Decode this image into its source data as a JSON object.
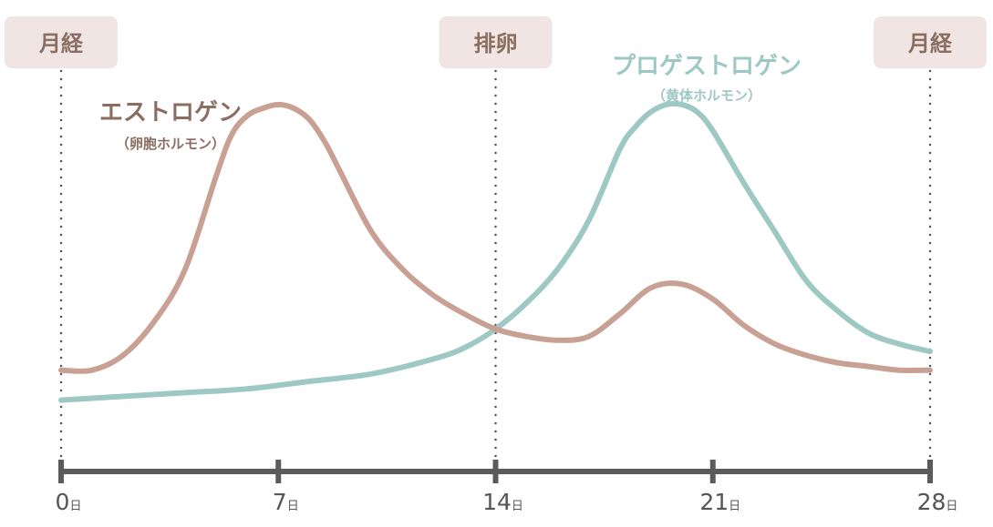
{
  "chart_data": {
    "type": "line",
    "title": "",
    "xlabel": "",
    "ylabel": "",
    "xlim": [
      0,
      28
    ],
    "ylim": [
      0,
      100
    ],
    "grid": false,
    "x_ticks": [
      {
        "value": 0,
        "label": "0",
        "unit": "日"
      },
      {
        "value": 7,
        "label": "7",
        "unit": "日"
      },
      {
        "value": 14,
        "label": "14",
        "unit": "日"
      },
      {
        "value": 21,
        "label": "21",
        "unit": "日"
      },
      {
        "value": 28,
        "label": "28",
        "unit": "日"
      }
    ],
    "phase_markers": [
      {
        "x": 0,
        "label": "月経"
      },
      {
        "x": 14,
        "label": "排卵"
      },
      {
        "x": 28,
        "label": "月経"
      }
    ],
    "series": [
      {
        "name": "エストロゲン",
        "subtitle": "（卵胞ホルモン）",
        "color": "#c9a194",
        "label_color": "#8a6e62",
        "x": [
          0,
          1,
          2,
          3,
          4,
          5,
          5.5,
          6,
          6.5,
          7,
          7.5,
          8,
          8.5,
          9,
          10,
          11,
          12,
          13,
          14,
          15,
          16,
          17,
          18,
          19,
          20,
          21,
          22,
          23,
          24,
          25,
          26,
          27,
          28
        ],
        "y": [
          21,
          21,
          25,
          34,
          48,
          73,
          84,
          89,
          91,
          92,
          91,
          88,
          82,
          74,
          58,
          48,
          41,
          36,
          32,
          30,
          29,
          30,
          36,
          43,
          44,
          40,
          33,
          28,
          25,
          23,
          22,
          21,
          21
        ]
      },
      {
        "name": "プロゲストロゲン",
        "subtitle": "（黄体ホルモン）",
        "color": "#9ec8c3",
        "label_color": "#9ec8c3",
        "x": [
          0,
          2,
          4,
          6,
          8,
          10,
          12,
          13,
          14,
          15,
          16,
          17,
          18,
          18.5,
          19,
          19.5,
          20,
          20.5,
          21,
          22,
          23,
          24,
          25,
          26,
          27,
          28
        ],
        "y": [
          13,
          14,
          15,
          16,
          18,
          20,
          24,
          27,
          32,
          39,
          48,
          61,
          80,
          86,
          90,
          92,
          92,
          90,
          85,
          71,
          58,
          45,
          37,
          31,
          28,
          26
        ]
      }
    ]
  }
}
